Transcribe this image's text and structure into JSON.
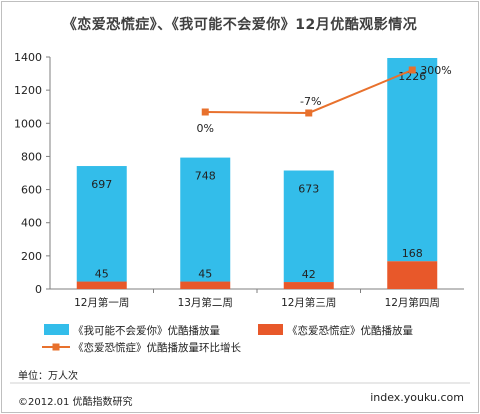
{
  "title": "《恋爱恐慌症》、《我可能不会爱你》12月优酷观影情况",
  "unit_note": "单位：万人次",
  "source": "©2012.01 优酷指数研究",
  "site": "index.youku.com",
  "colors": {
    "series_top": "#33bdea",
    "series_bottom": "#e8582a",
    "growth_line": "#e8712d"
  },
  "chart_data": {
    "type": "bar",
    "stacked": true,
    "categories": [
      "12月第一周",
      "13月第二周",
      "12月第三周",
      "12月第四周"
    ],
    "series": [
      {
        "name": "《我可能不会爱你》优酷播放量",
        "values": [
          697,
          748,
          673,
          1226
        ]
      },
      {
        "name": "《恋爱恐慌症》优酷播放量",
        "values": [
          45,
          45,
          42,
          168
        ]
      }
    ],
    "line_series": {
      "name": "《恋爱恐慌症》优酷播放量环比增长",
      "values": [
        null,
        0,
        -7,
        300
      ],
      "labels": [
        "",
        "0%",
        "-7%",
        "300%"
      ]
    },
    "y_ticks": [
      "0",
      "200",
      "400",
      "600",
      "800",
      "1000",
      "1200",
      "1400"
    ],
    "ylim": [
      0,
      1400
    ],
    "grid": false,
    "legend_position": "bottom"
  }
}
